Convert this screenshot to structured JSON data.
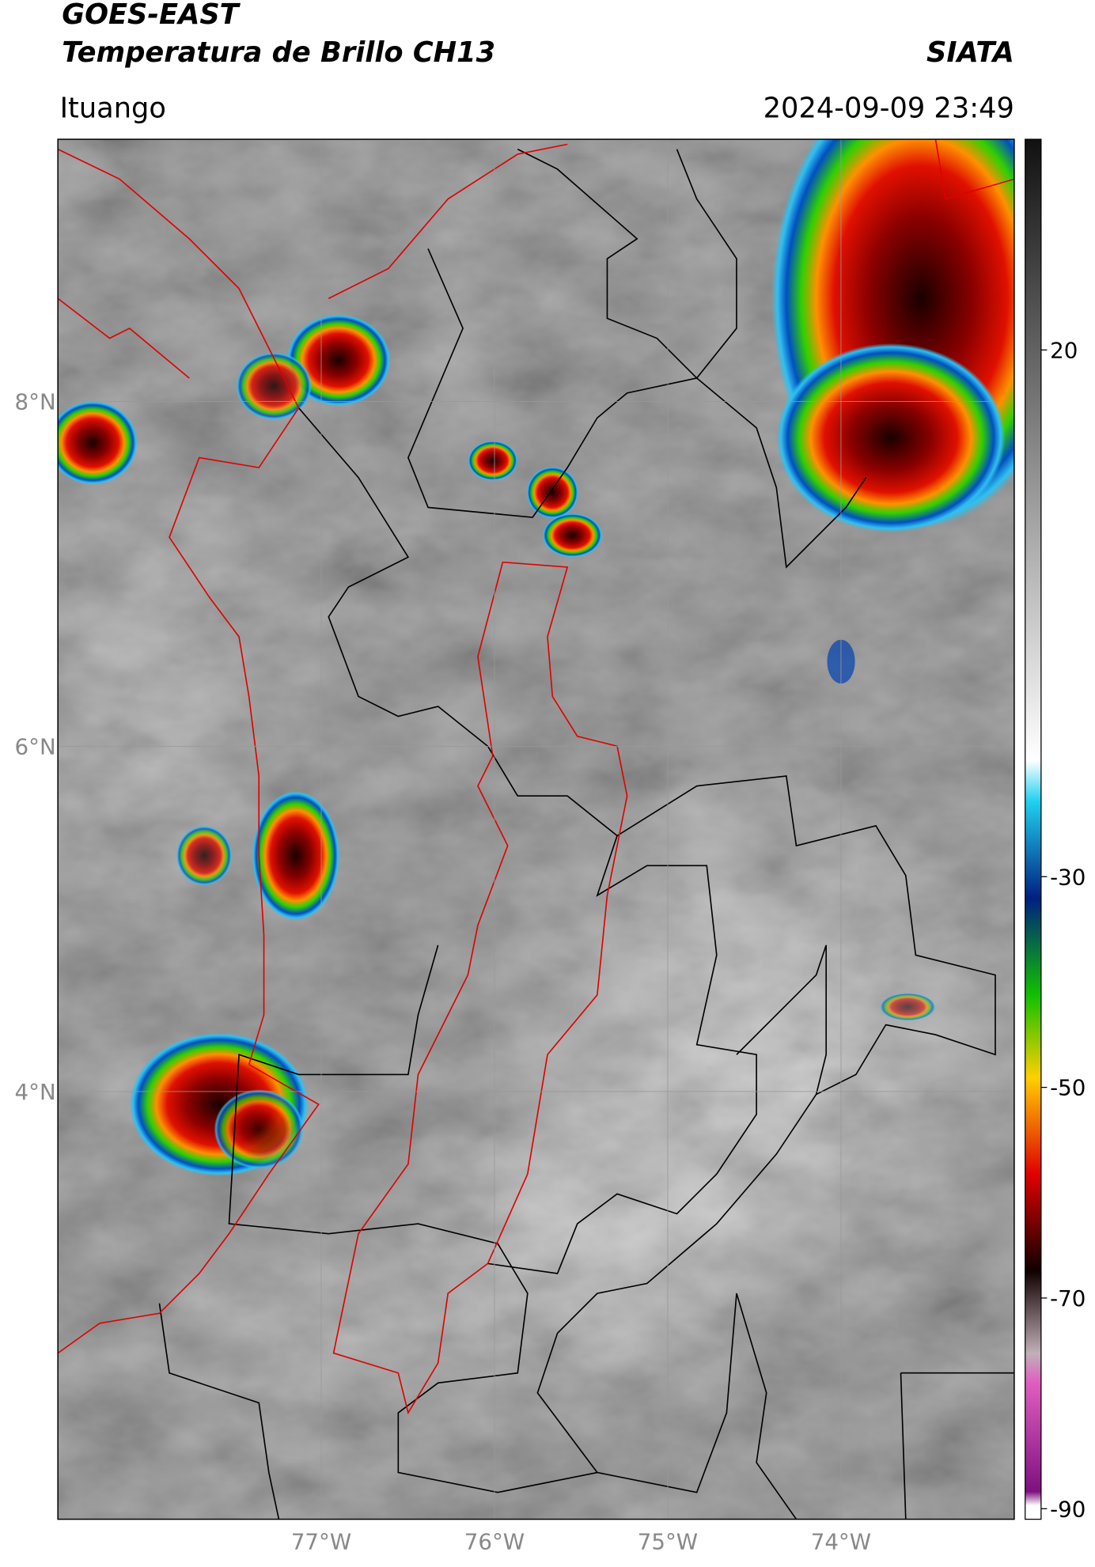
{
  "chart_data": {
    "type": "map",
    "title": "GOES-EAST",
    "subtitle": "Temperatura de Brillo CH13",
    "source": "SIATA",
    "location": "Ituango",
    "timestamp": "2024-09-09 23:49",
    "xlim": [
      -78.52,
      -73.0
    ],
    "ylim": [
      1.52,
      9.52
    ],
    "xticks": [
      {
        "value": -77,
        "label": "77°W"
      },
      {
        "value": -76,
        "label": "76°W"
      },
      {
        "value": -75,
        "label": "75°W"
      },
      {
        "value": -74,
        "label": "74°W"
      }
    ],
    "yticks": [
      {
        "value": 8,
        "label": "8°N"
      },
      {
        "value": 6,
        "label": "6°N"
      },
      {
        "value": 4,
        "label": "4°N"
      }
    ],
    "colorbar_lim": [
      -91,
      40
    ],
    "colorbar_ticks": [
      20,
      -30,
      -50,
      -70,
      -90
    ],
    "grid": true
  }
}
